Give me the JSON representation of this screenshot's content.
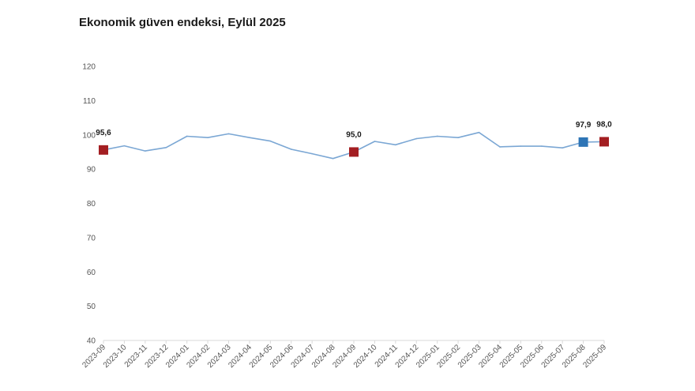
{
  "title": "Ekonomik güven endeksi, Eylül 2025",
  "chart_data": {
    "type": "line",
    "title": "Ekonomik güven endeksi, Eylül 2025",
    "xlabel": "",
    "ylabel": "",
    "ylim": [
      40,
      120
    ],
    "yticks": [
      40,
      50,
      60,
      70,
      80,
      90,
      100,
      110,
      120
    ],
    "grid": false,
    "legend": "none",
    "x": [
      "2023-09",
      "2023-10",
      "2023-11",
      "2023-12",
      "2024-01",
      "2024-02",
      "2024-03",
      "2024-04",
      "2024-05",
      "2024-06",
      "2024-07",
      "2024-08",
      "2024-09",
      "2024-10",
      "2024-11",
      "2024-12",
      "2025-01",
      "2025-02",
      "2025-03",
      "2025-04",
      "2025-05",
      "2025-06",
      "2025-07",
      "2025-08",
      "2025-09"
    ],
    "series": [
      {
        "color": "#7ba7d4",
        "values": [
          95.6,
          96.8,
          95.3,
          96.3,
          99.6,
          99.2,
          100.3,
          99.2,
          98.2,
          95.8,
          94.5,
          93.1,
          95.0,
          98.1,
          97.1,
          98.9,
          99.6,
          99.2,
          100.7,
          96.5,
          96.7,
          96.7,
          96.2,
          97.9,
          98.0
        ]
      }
    ],
    "markers": [
      {
        "x": "2023-09",
        "value": 95.6,
        "label": "95,6",
        "color": "#a31e22"
      },
      {
        "x": "2024-09",
        "value": 95.0,
        "label": "95,0",
        "color": "#a31e22"
      },
      {
        "x": "2025-08",
        "value": 97.9,
        "label": "97,9",
        "color": "#2e75b6"
      },
      {
        "x": "2025-09",
        "value": 98.0,
        "label": "98,0",
        "color": "#a31e22"
      }
    ]
  }
}
